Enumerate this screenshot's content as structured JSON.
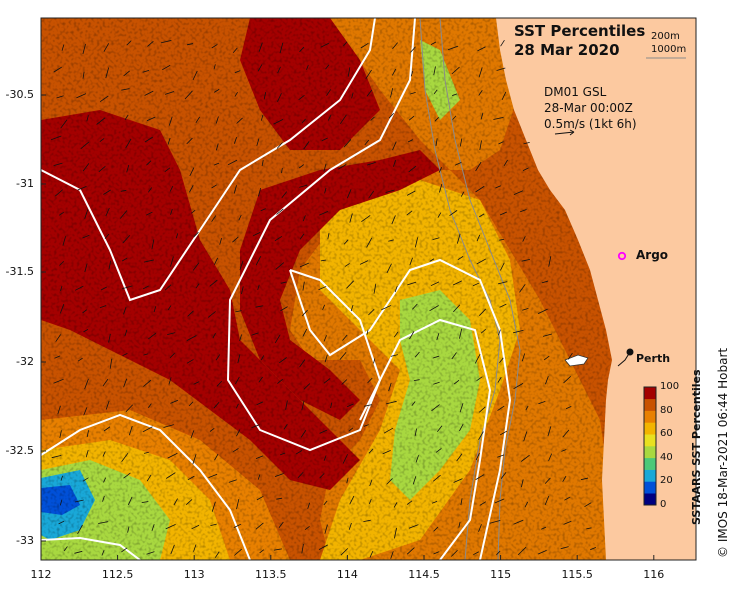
{
  "header": {
    "title_line1": "SST Percentiles",
    "title_line2": "28 Mar 2020",
    "depth_line1": "200m",
    "depth_line2": "1000m"
  },
  "current_key": {
    "line1": "DM01 GSL",
    "line2": "28-Mar 00:00Z",
    "line3": "0.5m/s (1kt 6h)"
  },
  "markers": {
    "argo_label": "Argo",
    "argo_color": "#ff00ff",
    "city_label": "Perth"
  },
  "axes": {
    "lat_ticks": [
      "-30.5",
      "-31",
      "-31.5",
      "-32",
      "-32.5",
      "-33"
    ],
    "lon_ticks": [
      "112",
      "112.5",
      "113",
      "113.5",
      "114",
      "114.5",
      "115",
      "115.5",
      "116"
    ]
  },
  "colorbar": {
    "title": "SSTAARS SST Percentiles",
    "ticks": [
      "100",
      "80",
      "60",
      "40",
      "20",
      "0"
    ],
    "colors": [
      "#000080",
      "#0050d8",
      "#19a8d8",
      "#4cc878",
      "#a8d840",
      "#e8e020",
      "#f2b400",
      "#e88000",
      "#c85200",
      "#a40000"
    ]
  },
  "credit": "© IMOS 18-Mar-2021 06:44 Hobart",
  "land_color": "#fcc9a0"
}
